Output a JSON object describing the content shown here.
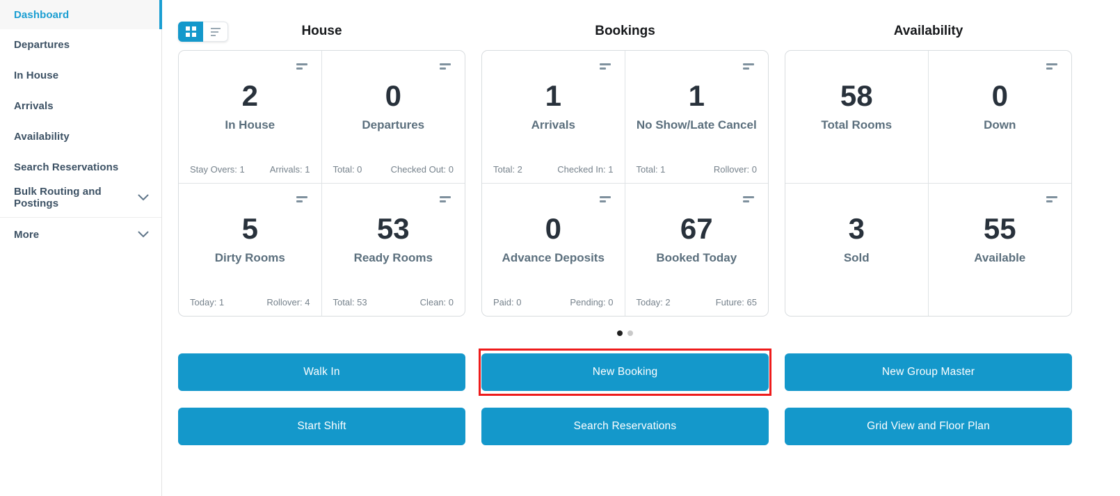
{
  "accent_color": "#1498cb",
  "highlight_color": "#ee1b1b",
  "sidebar": {
    "items": [
      {
        "label": "Dashboard",
        "active": true,
        "chevron": false
      },
      {
        "label": "Departures",
        "active": false,
        "chevron": false
      },
      {
        "label": "In House",
        "active": false,
        "chevron": false
      },
      {
        "label": "Arrivals",
        "active": false,
        "chevron": false
      },
      {
        "label": "Availability",
        "active": false,
        "chevron": false
      },
      {
        "label": "Search Reservations",
        "active": false,
        "chevron": false
      },
      {
        "label": "Bulk Routing and Postings",
        "active": false,
        "chevron": true
      },
      {
        "label": "More",
        "active": false,
        "chevron": true,
        "divider_before": true
      }
    ]
  },
  "view_toggle": {
    "grid_active": true,
    "list_active": false
  },
  "sections": [
    {
      "title": "House",
      "cards": [
        {
          "value": "2",
          "label": "In House",
          "footer_left": "Stay Overs: 1",
          "footer_right": "Arrivals: 1",
          "menu": true
        },
        {
          "value": "0",
          "label": "Departures",
          "footer_left": "Total: 0",
          "footer_right": "Checked Out: 0",
          "menu": true
        },
        {
          "value": "5",
          "label": "Dirty Rooms",
          "footer_left": "Today: 1",
          "footer_right": "Rollover: 4",
          "menu": true
        },
        {
          "value": "53",
          "label": "Ready Rooms",
          "footer_left": "Total: 53",
          "footer_right": "Clean: 0",
          "menu": true
        }
      ]
    },
    {
      "title": "Bookings",
      "cards": [
        {
          "value": "1",
          "label": "Arrivals",
          "footer_left": "Total: 2",
          "footer_right": "Checked In: 1",
          "menu": true
        },
        {
          "value": "1",
          "label": "No Show/Late Cancel",
          "footer_left": "Total: 1",
          "footer_right": "Rollover: 0",
          "menu": true
        },
        {
          "value": "0",
          "label": "Advance Deposits",
          "footer_left": "Paid: 0",
          "footer_right": "Pending: 0",
          "menu": true
        },
        {
          "value": "67",
          "label": "Booked Today",
          "footer_left": "Today: 2",
          "footer_right": "Future: 65",
          "menu": true
        }
      ]
    },
    {
      "title": "Availability",
      "cards": [
        {
          "value": "58",
          "label": "Total Rooms",
          "footer_left": "",
          "footer_right": "",
          "menu": false
        },
        {
          "value": "0",
          "label": "Down",
          "footer_left": "",
          "footer_right": "",
          "menu": true
        },
        {
          "value": "3",
          "label": "Sold",
          "footer_left": "",
          "footer_right": "",
          "menu": false
        },
        {
          "value": "55",
          "label": "Available",
          "footer_left": "",
          "footer_right": "",
          "menu": true
        }
      ]
    }
  ],
  "pagination": {
    "dot_count": 2,
    "active_index": 0
  },
  "action_buttons": [
    {
      "label": "Walk In",
      "highlighted": false
    },
    {
      "label": "New Booking",
      "highlighted": true
    },
    {
      "label": "New Group Master",
      "highlighted": false
    },
    {
      "label": "Start Shift",
      "highlighted": false
    },
    {
      "label": "Search Reservations",
      "highlighted": false
    },
    {
      "label": "Grid View and Floor Plan",
      "highlighted": false
    }
  ]
}
